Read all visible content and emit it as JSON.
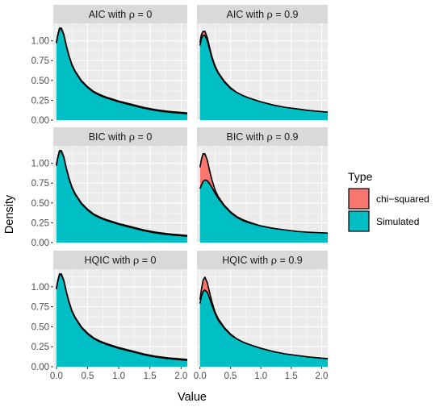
{
  "chart_data": {
    "type": "area",
    "xlabel": "Value",
    "ylabel": "Density",
    "xlim": [
      -0.05,
      2.1
    ],
    "ylim": [
      0,
      1.22
    ],
    "x_ticks": [
      0.0,
      0.5,
      1.0,
      1.5,
      2.0
    ],
    "x_tick_labels": [
      "0.0",
      "0.5",
      "1.0",
      "1.5",
      "2.0"
    ],
    "y_ticks": [
      0.0,
      0.25,
      0.5,
      0.75,
      1.0
    ],
    "y_tick_labels": [
      "0.00",
      "0.25",
      "0.50",
      "0.75",
      "1.00"
    ],
    "grid": true,
    "legend": {
      "title": "Type",
      "placement": "right",
      "entries": [
        {
          "label": "chi−squared",
          "color": "#F8766D"
        },
        {
          "label": "Simulated",
          "color": "#00BFC4"
        }
      ]
    },
    "series_names": [
      "chi-squared",
      "Simulated"
    ],
    "colors": {
      "chi_squared": "#F8766D",
      "simulated": "#00BFC4",
      "outline": "#000000",
      "panel_bg": "#EBEBEB",
      "strip_bg": "#D9D9D9",
      "grid": "#FFFFFF"
    },
    "x": [
      0.0,
      0.02,
      0.05,
      0.08,
      0.12,
      0.16,
      0.2,
      0.25,
      0.3,
      0.4,
      0.5,
      0.6,
      0.7,
      0.8,
      1.0,
      1.2,
      1.4,
      1.6,
      1.8,
      2.1
    ],
    "panels": [
      {
        "label_prefix": "AIC with ",
        "label_symbol": "ρ",
        "label_value": " = 0",
        "chi_squared": [
          0.98,
          1.07,
          1.16,
          1.16,
          1.08,
          0.94,
          0.82,
          0.7,
          0.62,
          0.5,
          0.42,
          0.36,
          0.32,
          0.29,
          0.24,
          0.2,
          0.16,
          0.13,
          0.11,
          0.09
        ],
        "simulated": [
          0.97,
          1.06,
          1.15,
          1.15,
          1.07,
          0.93,
          0.81,
          0.69,
          0.61,
          0.49,
          0.41,
          0.35,
          0.31,
          0.28,
          0.23,
          0.19,
          0.15,
          0.12,
          0.1,
          0.08
        ]
      },
      {
        "label_prefix": "AIC with ",
        "label_symbol": "ρ",
        "label_value": " = 0.9",
        "chi_squared": [
          0.98,
          1.07,
          1.12,
          1.12,
          1.04,
          0.91,
          0.79,
          0.68,
          0.6,
          0.49,
          0.41,
          0.35,
          0.31,
          0.28,
          0.23,
          0.19,
          0.16,
          0.14,
          0.12,
          0.1
        ],
        "simulated": [
          0.94,
          1.02,
          1.07,
          1.07,
          1.0,
          0.88,
          0.77,
          0.66,
          0.59,
          0.48,
          0.4,
          0.35,
          0.31,
          0.28,
          0.23,
          0.19,
          0.16,
          0.14,
          0.12,
          0.1
        ]
      },
      {
        "label_prefix": "BIC with ",
        "label_symbol": "ρ",
        "label_value": " = 0",
        "chi_squared": [
          0.98,
          1.07,
          1.16,
          1.16,
          1.08,
          0.94,
          0.82,
          0.7,
          0.62,
          0.5,
          0.42,
          0.36,
          0.32,
          0.29,
          0.24,
          0.2,
          0.16,
          0.13,
          0.11,
          0.09
        ],
        "simulated": [
          0.97,
          1.06,
          1.15,
          1.15,
          1.07,
          0.93,
          0.81,
          0.69,
          0.61,
          0.49,
          0.41,
          0.35,
          0.31,
          0.28,
          0.23,
          0.19,
          0.15,
          0.12,
          0.1,
          0.08
        ]
      },
      {
        "label_prefix": "BIC with ",
        "label_symbol": "ρ",
        "label_value": " = 0.9",
        "chi_squared": [
          0.95,
          1.04,
          1.12,
          1.12,
          1.04,
          0.9,
          0.78,
          0.66,
          0.58,
          0.47,
          0.39,
          0.33,
          0.29,
          0.26,
          0.21,
          0.18,
          0.15,
          0.13,
          0.12,
          0.11
        ],
        "simulated": [
          0.68,
          0.72,
          0.77,
          0.79,
          0.78,
          0.74,
          0.69,
          0.62,
          0.56,
          0.46,
          0.38,
          0.32,
          0.28,
          0.25,
          0.21,
          0.18,
          0.16,
          0.14,
          0.13,
          0.12
        ]
      },
      {
        "label_prefix": "HQIC with ",
        "label_symbol": "ρ",
        "label_value": " = 0",
        "chi_squared": [
          0.98,
          1.07,
          1.16,
          1.16,
          1.08,
          0.94,
          0.82,
          0.7,
          0.62,
          0.5,
          0.42,
          0.36,
          0.32,
          0.29,
          0.24,
          0.2,
          0.16,
          0.13,
          0.11,
          0.09
        ],
        "simulated": [
          0.97,
          1.06,
          1.15,
          1.15,
          1.07,
          0.93,
          0.81,
          0.69,
          0.61,
          0.49,
          0.41,
          0.35,
          0.31,
          0.28,
          0.23,
          0.19,
          0.15,
          0.12,
          0.1,
          0.08
        ]
      },
      {
        "label_prefix": "HQIC with ",
        "label_symbol": "ρ",
        "label_value": " = 0.9",
        "chi_squared": [
          0.84,
          0.95,
          1.08,
          1.12,
          1.05,
          0.92,
          0.8,
          0.68,
          0.6,
          0.49,
          0.41,
          0.35,
          0.31,
          0.28,
          0.23,
          0.19,
          0.16,
          0.14,
          0.12,
          0.1
        ],
        "simulated": [
          0.79,
          0.87,
          0.94,
          0.96,
          0.93,
          0.85,
          0.76,
          0.66,
          0.58,
          0.48,
          0.4,
          0.35,
          0.31,
          0.28,
          0.23,
          0.19,
          0.16,
          0.14,
          0.12,
          0.1
        ]
      }
    ]
  }
}
